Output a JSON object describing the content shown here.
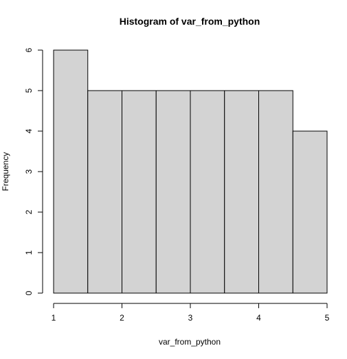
{
  "chart_data": {
    "type": "bar",
    "title": "Histogram of var_from_python",
    "xlabel": "var_from_python",
    "ylabel": "Frequency",
    "bins": [
      {
        "from": 1.0,
        "to": 1.5,
        "count": 6
      },
      {
        "from": 1.5,
        "to": 2.0,
        "count": 5
      },
      {
        "from": 2.0,
        "to": 2.5,
        "count": 5
      },
      {
        "from": 2.5,
        "to": 3.0,
        "count": 5
      },
      {
        "from": 3.0,
        "to": 3.5,
        "count": 5
      },
      {
        "from": 3.5,
        "to": 4.0,
        "count": 5
      },
      {
        "from": 4.0,
        "to": 4.5,
        "count": 5
      },
      {
        "from": 4.5,
        "to": 5.0,
        "count": 4
      }
    ],
    "xlim": [
      1,
      5
    ],
    "ylim": [
      0,
      6
    ],
    "xticks": [
      "1",
      "2",
      "3",
      "4",
      "5"
    ],
    "yticks": [
      "0",
      "1",
      "2",
      "3",
      "4",
      "5",
      "6"
    ],
    "grid": false,
    "bar_fill": "#d3d3d3",
    "bar_stroke": "#000000"
  }
}
